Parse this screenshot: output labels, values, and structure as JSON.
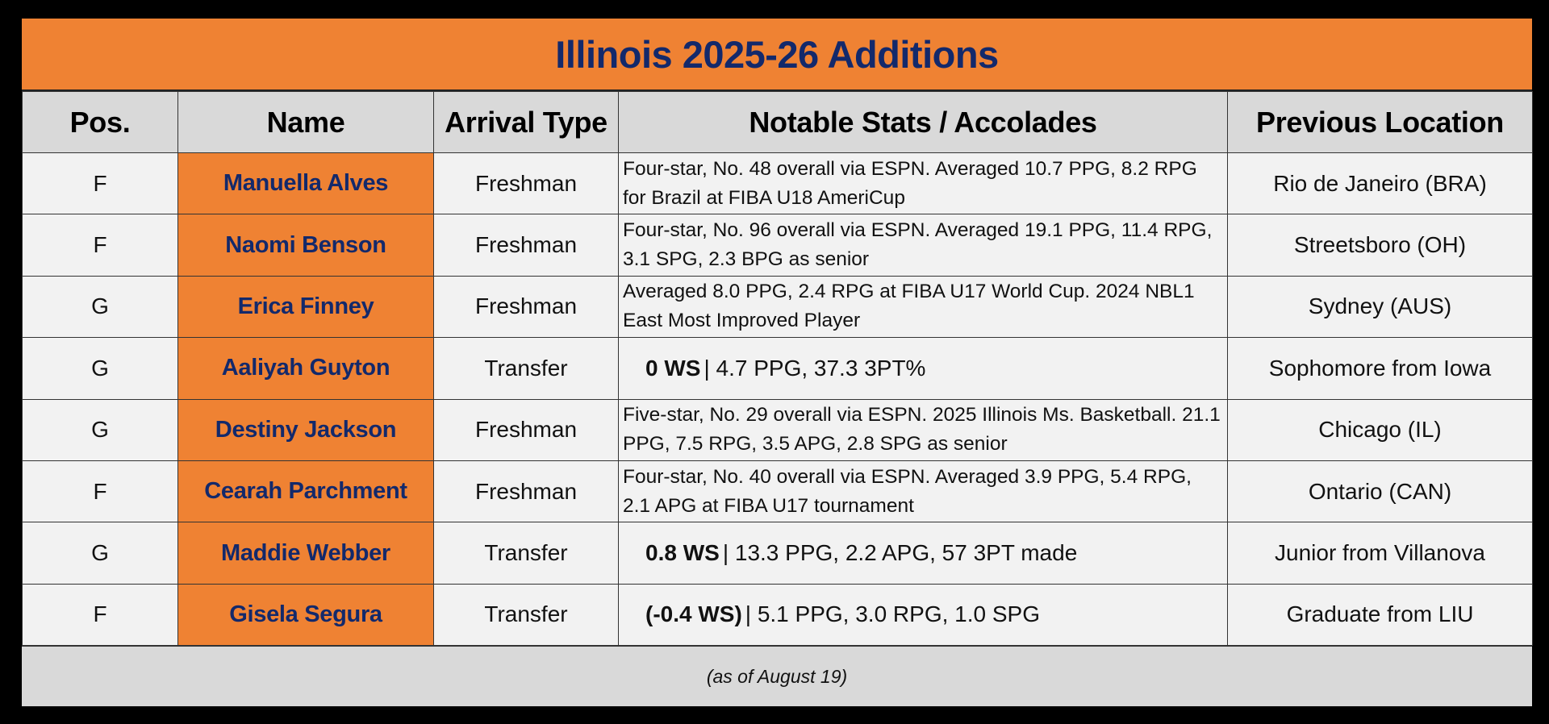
{
  "title": "Illinois 2025-26 Additions",
  "colors": {
    "accent_orange": "#ef8233",
    "navy_text": "#13296b",
    "header_gray": "#d9d9d9",
    "cell_bg": "#f2f2f2",
    "frame_bg": "#000000"
  },
  "columns": [
    "Pos.",
    "Name",
    "Arrival Type",
    "Notable Stats / Accolades",
    "Previous Location"
  ],
  "rows": [
    {
      "pos": "F",
      "name": "Manuella Alves",
      "arrival": "Freshman",
      "notes": "Four-star, No. 48 overall via ESPN. Averaged 10.7 PPG, 8.2 RPG for Brazil at FIBA U18 AmeriCup",
      "location": "Rio de Janeiro (BRA)"
    },
    {
      "pos": "F",
      "name": "Naomi Benson",
      "arrival": "Freshman",
      "notes": "Four-star, No. 96 overall via ESPN. Averaged 19.1 PPG, 11.4 RPG, 3.1 SPG, 2.3 BPG as senior",
      "location": "Streetsboro (OH)"
    },
    {
      "pos": "G",
      "name": "Erica Finney",
      "arrival": "Freshman",
      "notes": "Averaged 8.0 PPG, 2.4 RPG at FIBA U17 World Cup. 2024 NBL1 East Most Improved Player",
      "location": "Sydney (AUS)"
    },
    {
      "pos": "G",
      "name": "Aaliyah Guyton",
      "arrival": "Transfer",
      "ws": "0 WS",
      "notes": "| 4.7 PPG, 37.3 3PT%",
      "location": "Sophomore from Iowa"
    },
    {
      "pos": "G",
      "name": "Destiny Jackson",
      "arrival": "Freshman",
      "notes": "Five-star, No. 29 overall via ESPN. 2025 Illinois Ms. Basketball. 21.1 PPG, 7.5 RPG, 3.5 APG, 2.8 SPG as senior",
      "location": "Chicago (IL)"
    },
    {
      "pos": "F",
      "name": "Cearah Parchment",
      "arrival": "Freshman",
      "notes": "Four-star, No. 40 overall via ESPN. Averaged 3.9 PPG, 5.4 RPG, 2.1 APG at FIBA U17 tournament",
      "location": "Ontario (CAN)"
    },
    {
      "pos": "G",
      "name": "Maddie Webber",
      "arrival": "Transfer",
      "ws": "0.8 WS",
      "notes": "| 13.3 PPG, 2.2 APG, 57 3PT made",
      "location": "Junior from Villanova"
    },
    {
      "pos": "F",
      "name": "Gisela Segura",
      "arrival": "Transfer",
      "ws": "(-0.4 WS)",
      "notes": "| 5.1 PPG, 3.0 RPG, 1.0 SPG",
      "location": "Graduate from LIU"
    }
  ],
  "footer": "(as of August 19)"
}
